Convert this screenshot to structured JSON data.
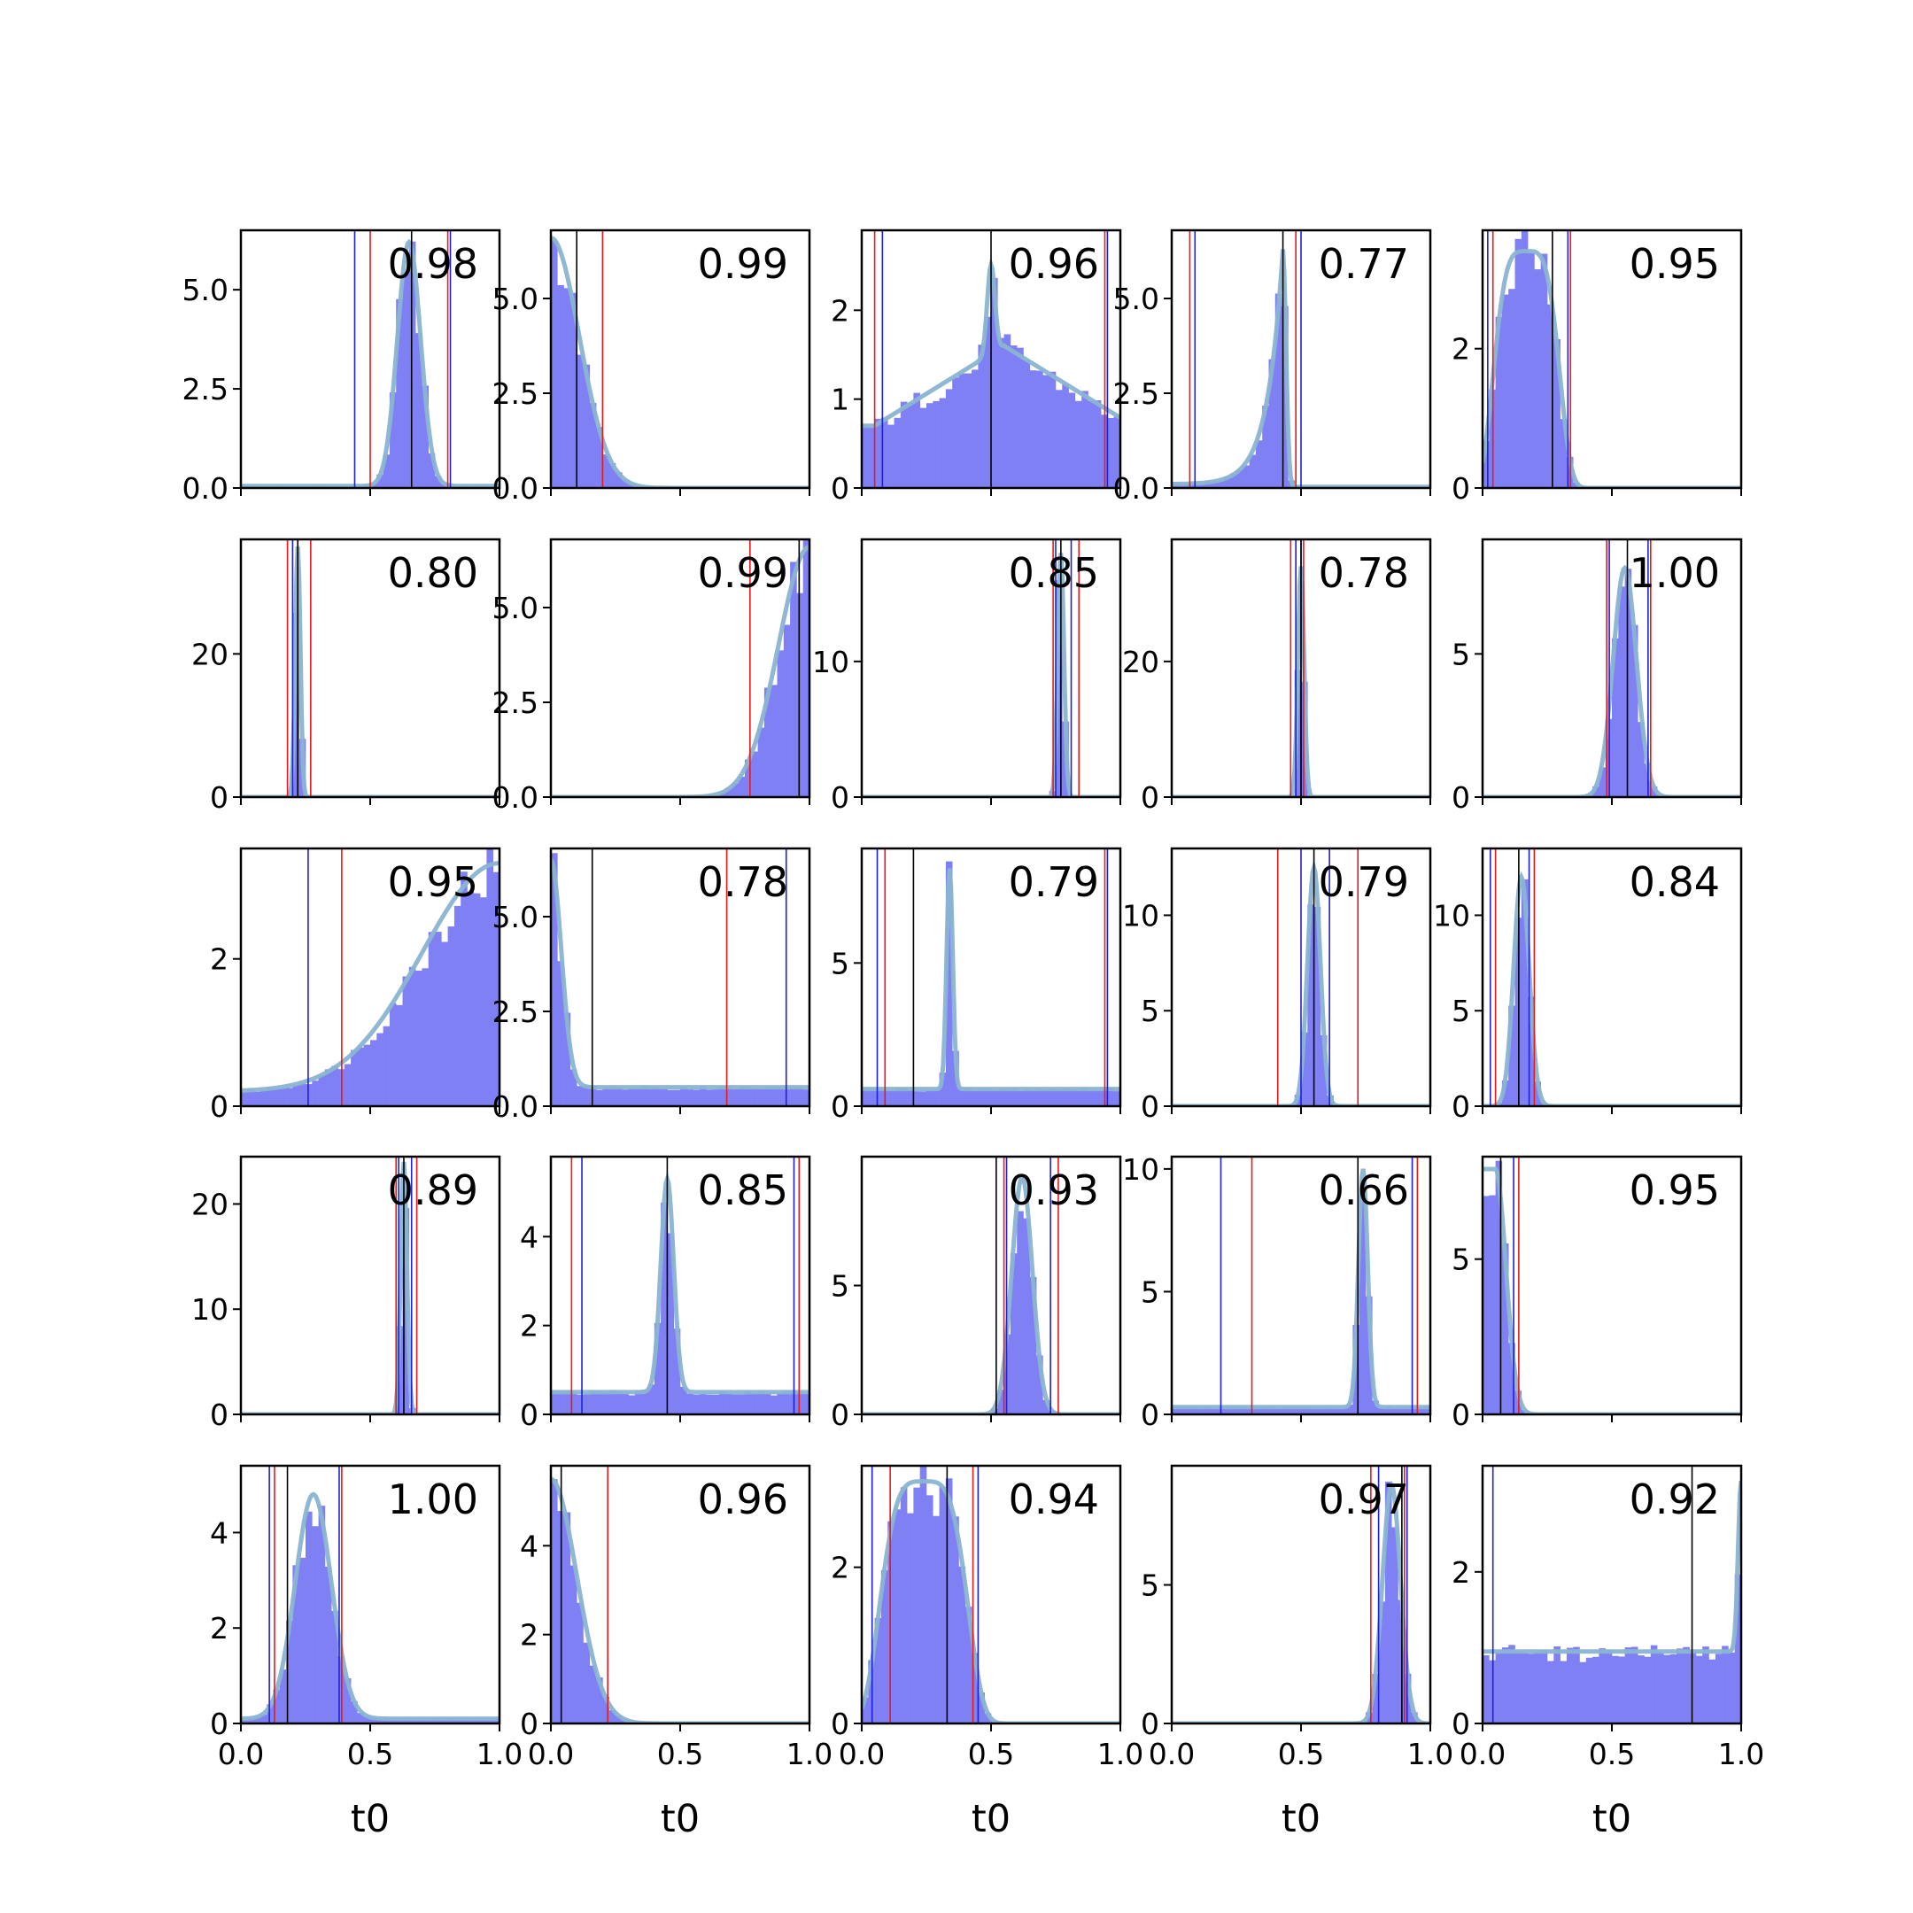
{
  "chart_data": {
    "type": "histogram-grid",
    "rows": 5,
    "cols": 5,
    "xlabel": "t0",
    "xlim": [
      0,
      1
    ],
    "xticks": [
      0.0,
      0.5,
      1.0
    ],
    "xtick_labels": [
      "0.0",
      "0.5",
      "1.0"
    ],
    "colors": {
      "hist": "#8080f5",
      "kde": "#8ab4d0",
      "interval_outer": "#e41a1c",
      "interval_inner": "#1f1fd6",
      "estimate": "#000000"
    },
    "panels": [
      {
        "id": "r1c1",
        "score": "0.98",
        "ylim": [
          0,
          6.5
        ],
        "yticks": [
          0,
          2.5,
          5
        ],
        "ytick_labels": [
          "0.0",
          "2.5",
          "5.0"
        ],
        "kind": "peak",
        "center": 0.65,
        "width": 0.045,
        "peak": 6.2,
        "base": 0.05,
        "red": [
          0.5,
          0.8
        ],
        "blue": [
          0.44,
          0.81
        ],
        "black": 0.66
      },
      {
        "id": "r1c2",
        "score": "0.99",
        "ylim": [
          0,
          6.8
        ],
        "yticks": [
          0,
          2.5,
          5
        ],
        "ytick_labels": [
          "0.0",
          "2.5",
          "5.0"
        ],
        "kind": "left",
        "center": 0.0,
        "width": 0.11,
        "peak": 6.6,
        "base": 0,
        "red": [
          0.0,
          0.2
        ],
        "blue": [
          0.0,
          0.0
        ],
        "black": 0.1
      },
      {
        "id": "r1c3",
        "score": "0.96",
        "ylim": [
          0,
          2.9
        ],
        "yticks": [
          0,
          1,
          2
        ],
        "ytick_labels": [
          "0",
          "1",
          "2"
        ],
        "kind": "broad",
        "center": 0.5,
        "width": 0.015,
        "peak": 2.5,
        "base": 0.7,
        "red": [
          0.05,
          0.94
        ],
        "blue": [
          0.08,
          0.95
        ],
        "black": 0.5
      },
      {
        "id": "r1c4",
        "score": "0.77",
        "ylim": [
          0,
          6.8
        ],
        "yticks": [
          0,
          2.5,
          5
        ],
        "ytick_labels": [
          "0.0",
          "2.5",
          "5.0"
        ],
        "kind": "ramp",
        "center": 0.43,
        "width": 0.06,
        "peak": 6.3,
        "base": 0.1,
        "red": [
          0.07,
          0.48
        ],
        "blue": [
          0.09,
          0.5
        ],
        "black": 0.43
      },
      {
        "id": "r1c5",
        "score": "0.95",
        "ylim": [
          0,
          3.7
        ],
        "yticks": [
          0,
          2
        ],
        "ytick_labels": [
          "0",
          "2"
        ],
        "kind": "plateau",
        "center": 0.17,
        "width": 0.09,
        "peak": 3.4,
        "base": 0,
        "red": [
          0.04,
          0.34
        ],
        "blue": [
          0.02,
          0.33
        ],
        "black": 0.27
      },
      {
        "id": "r2c1",
        "score": "0.80",
        "ylim": [
          0,
          36
        ],
        "yticks": [
          0,
          20
        ],
        "ytick_labels": [
          "0",
          "20"
        ],
        "kind": "peak",
        "center": 0.22,
        "width": 0.01,
        "peak": 35,
        "base": 0,
        "red": [
          0.18,
          0.27
        ],
        "blue": [
          0.2,
          0.22
        ],
        "black": 0.22
      },
      {
        "id": "r2c2",
        "score": "0.99",
        "ylim": [
          0,
          6.8
        ],
        "yticks": [
          0,
          2.5,
          5
        ],
        "ytick_labels": [
          "0.0",
          "2.5",
          "5.0"
        ],
        "kind": "right",
        "center": 1.0,
        "width": 0.12,
        "peak": 6.6,
        "base": 0,
        "red": [
          0.77,
          1.0
        ],
        "blue": [
          1.0,
          1.0
        ],
        "black": 0.96
      },
      {
        "id": "r2c3",
        "score": "0.85",
        "ylim": [
          0,
          19
        ],
        "yticks": [
          0,
          10
        ],
        "ytick_labels": [
          "0",
          "10"
        ],
        "kind": "peak",
        "center": 0.77,
        "width": 0.012,
        "peak": 18,
        "base": 0,
        "red": [
          0.74,
          0.84
        ],
        "blue": [
          0.75,
          0.81
        ],
        "black": 0.77
      },
      {
        "id": "r2c4",
        "score": "0.78",
        "ylim": [
          0,
          38
        ],
        "yticks": [
          0,
          20
        ],
        "ytick_labels": [
          "0",
          "20"
        ],
        "kind": "peak",
        "center": 0.5,
        "width": 0.012,
        "peak": 34,
        "base": 0,
        "red": [
          0.46,
          0.51
        ],
        "blue": [
          0.48,
          0.5
        ],
        "black": 0.5
      },
      {
        "id": "r2c5",
        "score": "1.00",
        "ylim": [
          0,
          9
        ],
        "yticks": [
          0,
          5
        ],
        "ytick_labels": [
          "0",
          "5"
        ],
        "kind": "peak",
        "center": 0.55,
        "width": 0.045,
        "peak": 8,
        "base": 0,
        "red": [
          0.48,
          0.65
        ],
        "blue": [
          0.49,
          0.64
        ],
        "black": 0.56
      },
      {
        "id": "r3c1",
        "score": "0.95",
        "ylim": [
          0,
          3.5
        ],
        "yticks": [
          0,
          2
        ],
        "ytick_labels": [
          "0",
          "2"
        ],
        "kind": "right",
        "center": 1.0,
        "width": 0.3,
        "peak": 3.3,
        "base": 0.2,
        "red": [
          0.39,
          1.0
        ],
        "blue": [
          0.26,
          1.0
        ],
        "black": 1.0
      },
      {
        "id": "r3c2",
        "score": "0.78",
        "ylim": [
          0,
          6.8
        ],
        "yticks": [
          0,
          2.5,
          5
        ],
        "ytick_labels": [
          "0.0",
          "2.5",
          "5.0"
        ],
        "kind": "left",
        "center": 0.0,
        "width": 0.04,
        "peak": 6.5,
        "base": 0.5,
        "red": [
          0.68,
          1.0
        ],
        "blue": [
          0.0,
          0.91
        ],
        "black": 0.16
      },
      {
        "id": "r3c3",
        "score": "0.79",
        "ylim": [
          0,
          9
        ],
        "yticks": [
          0,
          5
        ],
        "ytick_labels": [
          "0",
          "5"
        ],
        "kind": "spike",
        "center": 0.34,
        "width": 0.012,
        "peak": 8.3,
        "base": 0.6,
        "red": [
          0.09,
          0.94
        ],
        "blue": [
          0.06,
          0.95
        ],
        "black": 0.2
      },
      {
        "id": "r3c4",
        "score": "0.79",
        "ylim": [
          0,
          13.5
        ],
        "yticks": [
          0,
          5,
          10
        ],
        "ytick_labels": [
          "0",
          "5",
          "10"
        ],
        "kind": "peak",
        "center": 0.55,
        "width": 0.025,
        "peak": 12.5,
        "base": 0,
        "red": [
          0.41,
          0.72
        ],
        "blue": [
          0.5,
          0.61
        ],
        "black": 0.55
      },
      {
        "id": "r3c5",
        "score": "0.84",
        "ylim": [
          0,
          13.5
        ],
        "yticks": [
          0,
          5,
          10
        ],
        "ytick_labels": [
          "0",
          "5",
          "10"
        ],
        "kind": "peak",
        "center": 0.15,
        "width": 0.03,
        "peak": 12,
        "base": 0,
        "red": [
          0.05,
          0.2
        ],
        "blue": [
          0.03,
          0.18
        ],
        "black": 0.14
      },
      {
        "id": "r4c1",
        "score": "0.89",
        "ylim": [
          0,
          24.5
        ],
        "yticks": [
          0,
          10,
          20
        ],
        "ytick_labels": [
          "0",
          "10",
          "20"
        ],
        "kind": "peak",
        "center": 0.63,
        "width": 0.012,
        "peak": 24,
        "base": 0,
        "red": [
          0.6,
          0.68
        ],
        "blue": [
          0.61,
          0.66
        ],
        "black": 0.63
      },
      {
        "id": "r4c2",
        "score": "0.85",
        "ylim": [
          0,
          5.8
        ],
        "yticks": [
          0,
          2,
          4
        ],
        "ytick_labels": [
          "0",
          "2",
          "4"
        ],
        "kind": "spike",
        "center": 0.45,
        "width": 0.025,
        "peak": 5.3,
        "base": 0.5,
        "red": [
          0.08,
          0.96
        ],
        "blue": [
          0.12,
          0.94
        ],
        "black": 0.45
      },
      {
        "id": "r4c3",
        "score": "0.93",
        "ylim": [
          0,
          10
        ],
        "yticks": [
          0,
          5
        ],
        "ytick_labels": [
          "0",
          "5"
        ],
        "kind": "peak",
        "center": 0.62,
        "width": 0.04,
        "peak": 9.2,
        "base": 0,
        "red": [
          0.55,
          0.76
        ],
        "blue": [
          0.56,
          0.73
        ],
        "black": 0.52
      },
      {
        "id": "r4c4",
        "score": "0.66",
        "ylim": [
          0,
          10.5
        ],
        "yticks": [
          0,
          5,
          10
        ],
        "ytick_labels": [
          "0",
          "5",
          "10"
        ],
        "kind": "spike",
        "center": 0.74,
        "width": 0.018,
        "peak": 10,
        "base": 0.3,
        "red": [
          0.31,
          0.95
        ],
        "blue": [
          0.19,
          0.93
        ],
        "black": 0.72
      },
      {
        "id": "r4c5",
        "score": "0.95",
        "ylim": [
          0,
          8.3
        ],
        "yticks": [
          0,
          5
        ],
        "ytick_labels": [
          "0",
          "5"
        ],
        "kind": "left",
        "center": 0.05,
        "width": 0.04,
        "peak": 7.9,
        "base": 0,
        "red": [
          0.0,
          0.14
        ],
        "blue": [
          0.0,
          0.12
        ],
        "black": 0.07
      },
      {
        "id": "r5c1",
        "score": "1.00",
        "ylim": [
          0,
          5.4
        ],
        "yticks": [
          0,
          2,
          4
        ],
        "ytick_labels": [
          "0",
          "2",
          "4"
        ],
        "kind": "peak",
        "center": 0.28,
        "width": 0.07,
        "peak": 4.8,
        "base": 0.1,
        "red": [
          0.13,
          0.39
        ],
        "blue": [
          0.11,
          0.38
        ],
        "black": 0.18
      },
      {
        "id": "r5c2",
        "score": "0.96",
        "ylim": [
          0,
          5.8
        ],
        "yticks": [
          0,
          2,
          4
        ],
        "ytick_labels": [
          "0",
          "2",
          "4"
        ],
        "kind": "left",
        "center": 0.0,
        "width": 0.1,
        "peak": 5.5,
        "base": 0,
        "red": [
          0.0,
          0.22
        ],
        "blue": [
          0.0,
          0.0
        ],
        "black": 0.04
      },
      {
        "id": "r5c3",
        "score": "0.94",
        "ylim": [
          0,
          3.3
        ],
        "yticks": [
          0,
          2
        ],
        "ytick_labels": [
          "0",
          "2"
        ],
        "kind": "plateau",
        "center": 0.24,
        "width": 0.12,
        "peak": 3.1,
        "base": 0,
        "red": [
          0.11,
          0.43
        ],
        "blue": [
          0.04,
          0.45
        ],
        "black": 0.33
      },
      {
        "id": "r5c4",
        "score": "0.97",
        "ylim": [
          0,
          9.3
        ],
        "yticks": [
          0,
          5
        ],
        "ytick_labels": [
          "0",
          "5"
        ],
        "kind": "peak",
        "center": 0.85,
        "width": 0.035,
        "peak": 8.6,
        "base": 0,
        "red": [
          0.77,
          0.9
        ],
        "blue": [
          0.8,
          0.91
        ],
        "black": 0.89
      },
      {
        "id": "r5c5",
        "score": "0.92",
        "ylim": [
          0,
          3.4
        ],
        "yticks": [
          0,
          2
        ],
        "ytick_labels": [
          "0",
          "2"
        ],
        "kind": "uniform",
        "center": 1.0,
        "width": 0.01,
        "peak": 3.2,
        "base": 0.95,
        "red": [
          0.0,
          1.0
        ],
        "blue": [
          0.04,
          1.0
        ],
        "black": 0.81
      }
    ]
  }
}
